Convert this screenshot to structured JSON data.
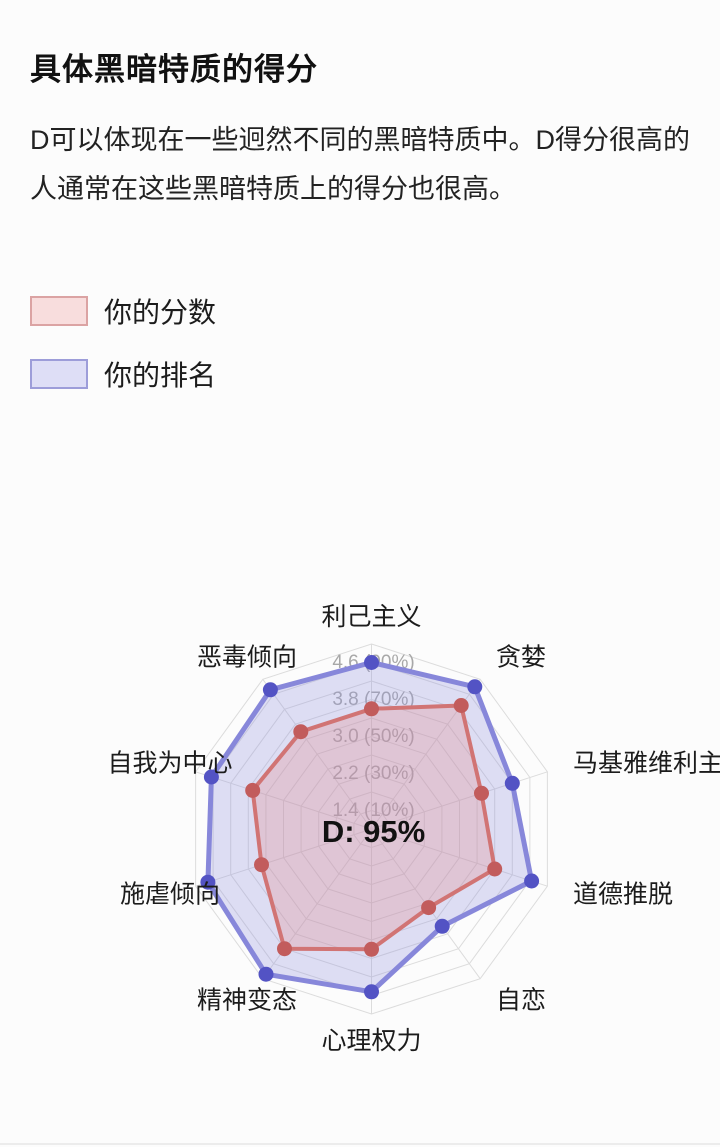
{
  "section": {
    "title": "具体黑暗特质的得分",
    "description": "D可以体现在一些迥然不同的黑暗特质中。D得分很高的人通常在这些黑暗特质上的得分也很高。"
  },
  "legend": {
    "items": [
      {
        "label": "你的分数",
        "swatch_fill": "#f8dddd",
        "swatch_border": "#dba3a3"
      },
      {
        "label": "你的排名",
        "swatch_fill": "#dedef6",
        "swatch_border": "#9d9dd9"
      }
    ]
  },
  "chart_data": {
    "type": "radar",
    "title": "",
    "categories": [
      "利己主义",
      "贪婪",
      "马基雅维利主义",
      "道德推脱",
      "自恋",
      "心理权力",
      "精神变态",
      "施虐倾向",
      "自我为中心",
      "恶毒倾向"
    ],
    "axis": {
      "min": 1,
      "max": 5,
      "rings": 10,
      "grid": true,
      "tick_values": [
        1.4,
        2.2,
        3.0,
        3.8,
        4.6
      ],
      "tick_percents": [
        10,
        30,
        50,
        70,
        90
      ],
      "tick_labels": [
        "1.4 (10%)",
        "2.2 (30%)",
        "3.0 (50%)",
        "3.8 (70%)",
        "4.6 (90%)"
      ],
      "tick_color": "#a8a8a8",
      "grid_color": "#dcdcdc"
    },
    "center_label": "D: 95%",
    "legend_position": "top-left",
    "series": [
      {
        "name": "你的分数",
        "kind": "score",
        "values": [
          3.6,
          4.3,
          3.5,
          3.8,
          3.1,
          3.6,
          4.2,
          3.5,
          3.7,
          3.6
        ],
        "stroke": "#d17474",
        "fill": "rgba(231,136,136,0.28)",
        "dot": "#c25c5c"
      },
      {
        "name": "你的排名",
        "kind": "percentile",
        "values_percent": [
          90,
          95,
          80,
          91,
          65,
          88,
          97,
          93,
          91,
          93
        ],
        "stroke": "#8787da",
        "fill": "rgba(148,148,223,0.30)",
        "dot": "#5353c4"
      }
    ]
  }
}
